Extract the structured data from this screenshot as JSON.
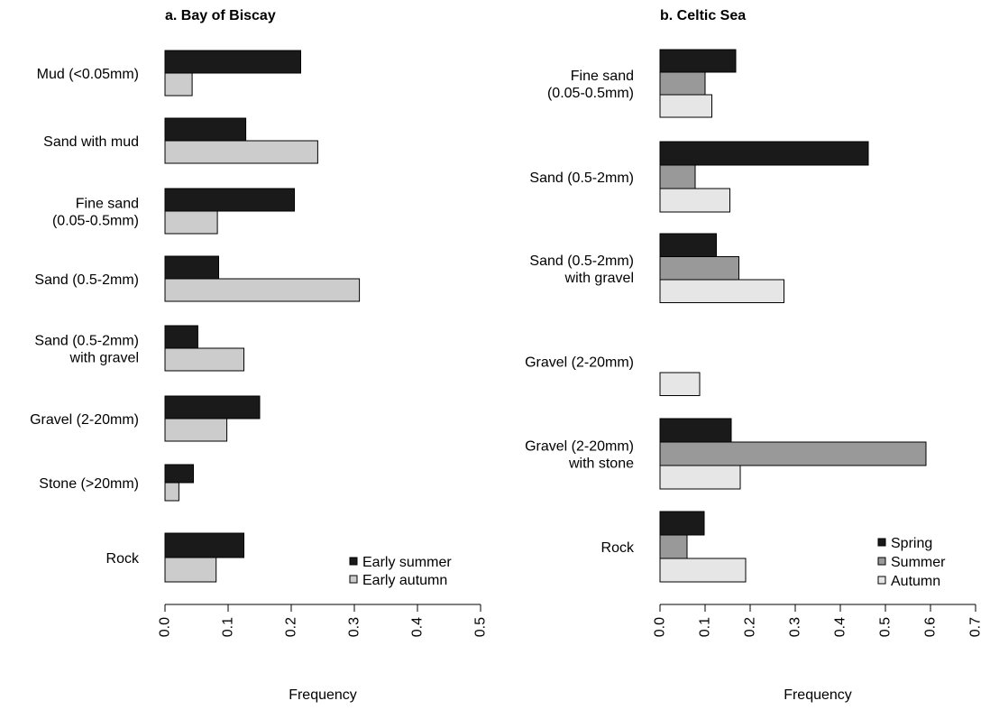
{
  "chart_data": [
    {
      "type": "bar",
      "orientation": "horizontal",
      "title": "a. Bay of Biscay",
      "xlabel": "Frequency",
      "xlim": [
        0,
        0.5
      ],
      "ticks": [
        "0.0",
        "0.1",
        "0.2",
        "0.3",
        "0.4",
        "0.5"
      ],
      "grid": false,
      "legend_position": "bottom-right",
      "categories": [
        [
          "Mud (<0.05mm)"
        ],
        [
          "Sand with mud"
        ],
        [
          "Fine sand",
          "(0.05-0.5mm)"
        ],
        [
          "Sand (0.5-2mm)"
        ],
        [
          "Sand (0.5-2mm)",
          "with gravel"
        ],
        [
          "Gravel (2-20mm)"
        ],
        [
          "Stone (>20mm)"
        ],
        [
          "Rock"
        ]
      ],
      "series": [
        {
          "name": "Early summer",
          "color": "#1a1a1a",
          "values": [
            0.215,
            0.128,
            0.205,
            0.085,
            0.052,
            0.15,
            0.045,
            0.125
          ]
        },
        {
          "name": "Early autumn",
          "color": "#cccccc",
          "values": [
            0.043,
            0.242,
            0.083,
            0.308,
            0.125,
            0.098,
            0.022,
            0.081
          ]
        }
      ]
    },
    {
      "type": "bar",
      "orientation": "horizontal",
      "title": "b. Celtic Sea",
      "xlabel": "Frequency",
      "xlim": [
        0,
        0.7
      ],
      "ticks": [
        "0.0",
        "0.1",
        "0.2",
        "0.3",
        "0.4",
        "0.5",
        "0.6",
        "0.7"
      ],
      "grid": false,
      "legend_position": "bottom-right",
      "categories": [
        [
          "Fine sand",
          "(0.05-0.5mm)"
        ],
        [
          "Sand (0.5-2mm)"
        ],
        [
          "Sand (0.5-2mm)",
          "with gravel"
        ],
        [
          "Gravel (2-20mm)"
        ],
        [
          "Gravel (2-20mm)",
          "with stone"
        ],
        [
          "Rock"
        ]
      ],
      "series": [
        {
          "name": "Spring",
          "color": "#1a1a1a",
          "values": [
            0.168,
            0.462,
            0.125,
            0.0,
            0.158,
            0.098
          ]
        },
        {
          "name": "Summer",
          "color": "#999999",
          "values": [
            0.1,
            0.078,
            0.175,
            0.0,
            0.59,
            0.06
          ]
        },
        {
          "name": "Autumn",
          "color": "#e6e6e6",
          "values": [
            0.115,
            0.155,
            0.275,
            0.088,
            0.178,
            0.19
          ]
        }
      ]
    }
  ]
}
